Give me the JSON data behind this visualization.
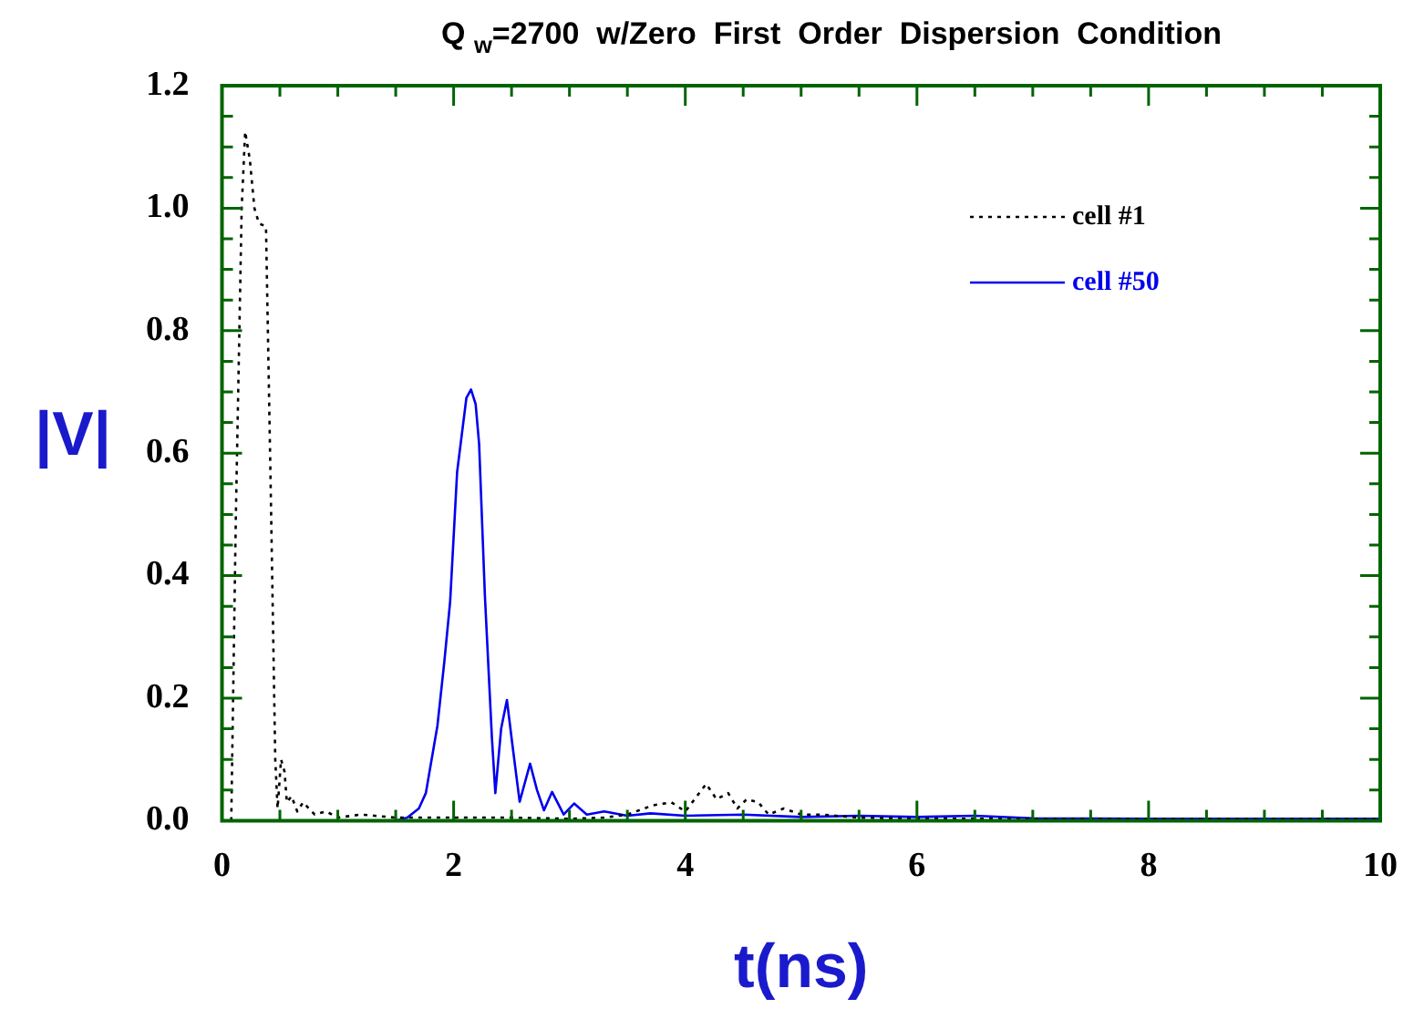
{
  "chart_data": {
    "type": "line",
    "title": "Q $_{w}$=2700  w/Zero  First  Order  Dispersion  Condition",
    "xlabel": "t(ns)",
    "ylabel": "|V|",
    "xlim": [
      0,
      10
    ],
    "ylim": [
      0,
      1.2
    ],
    "xticks": [
      0,
      {
        "value": 0.5,
        "label": null
      },
      {
        "value": 1,
        "label": null
      },
      {
        "value": 1.5,
        "label": null
      },
      2,
      {
        "value": 2.5,
        "label": null
      },
      {
        "value": 3,
        "label": null
      },
      {
        "value": 3.5,
        "label": null
      },
      4,
      {
        "value": 4.5,
        "label": null
      },
      {
        "value": 5,
        "label": null
      },
      {
        "value": 5.5,
        "label": null
      },
      6,
      {
        "value": 6.5,
        "label": null
      },
      {
        "value": 7,
        "label": null
      },
      {
        "value": 7.5,
        "label": null
      },
      8,
      {
        "value": 8.5,
        "label": null
      },
      {
        "value": 9,
        "label": null
      },
      {
        "value": 9.5,
        "label": null
      },
      10
    ],
    "yticks": [
      {
        "value": 0,
        "label": "0.0"
      },
      {
        "value": 0.05,
        "label": null
      },
      {
        "value": 0.1,
        "label": null
      },
      {
        "value": 0.15,
        "label": null
      },
      {
        "value": 0.2,
        "label": "0.2"
      },
      {
        "value": 0.25,
        "label": null
      },
      {
        "value": 0.3,
        "label": null
      },
      {
        "value": 0.35,
        "label": null
      },
      {
        "value": 0.4,
        "label": "0.4"
      },
      {
        "value": 0.45,
        "label": null
      },
      {
        "value": 0.5,
        "label": null
      },
      {
        "value": 0.55,
        "label": null
      },
      {
        "value": 0.6,
        "label": "0.6"
      },
      {
        "value": 0.65,
        "label": null
      },
      {
        "value": 0.7,
        "label": null
      },
      {
        "value": 0.75,
        "label": null
      },
      {
        "value": 0.8,
        "label": "0.8"
      },
      {
        "value": 0.85,
        "label": null
      },
      {
        "value": 0.9,
        "label": null
      },
      {
        "value": 0.95,
        "label": null
      },
      {
        "value": 1,
        "label": "1.0"
      },
      {
        "value": 1.05,
        "label": null
      },
      {
        "value": 1.1,
        "label": null
      },
      {
        "value": 1.15,
        "label": null
      },
      {
        "value": 1.2,
        "label": "1.2"
      }
    ],
    "legend": "top right",
    "marker": "none",
    "grid": false,
    "series": [
      {
        "name": "cell #1",
        "color": "#000000",
        "line_style": "dotted",
        "x": [
          0,
          0.08,
          0.12,
          0.17,
          0.2,
          0.24,
          0.28,
          0.32,
          0.38,
          0.42,
          0.46,
          0.48,
          0.51,
          0.54,
          0.56,
          0.6,
          0.65,
          0.7,
          0.8,
          0.9,
          1.0,
          1.2,
          1.5,
          2,
          2.5,
          3,
          3.3,
          3.5,
          3.72,
          3.88,
          4.0,
          4.1,
          4.18,
          4.27,
          4.37,
          4.45,
          4.53,
          4.63,
          4.72,
          4.85,
          5.0,
          5.17,
          5.5,
          6,
          7,
          8,
          9,
          10
        ],
        "values": [
          0,
          0,
          0.5,
          1.0,
          1.125,
          1.08,
          1.0,
          0.975,
          0.97,
          0.55,
          0.1,
          0.02,
          0.1,
          0.08,
          0.03,
          0.04,
          0.015,
          0.03,
          0.01,
          0.015,
          0.005,
          0.01,
          0.005,
          0.005,
          0.005,
          0.003,
          0.005,
          0.01,
          0.025,
          0.03,
          0.015,
          0.04,
          0.06,
          0.035,
          0.045,
          0.02,
          0.035,
          0.03,
          0.01,
          0.02,
          0.01,
          0.01,
          0.005,
          0.003,
          0.003,
          0.003,
          0.003,
          0.003
        ]
      },
      {
        "name": "cell #50",
        "color": "#0000ee",
        "line_style": "solid",
        "x": [
          0,
          1.5,
          1.6,
          1.7,
          1.76,
          1.86,
          1.92,
          1.97,
          2.03,
          2.11,
          2.15,
          2.19,
          2.22,
          2.27,
          2.33,
          2.36,
          2.41,
          2.46,
          2.51,
          2.57,
          2.66,
          2.72,
          2.78,
          2.85,
          2.95,
          3.04,
          3.15,
          3.3,
          3.5,
          3.7,
          4,
          4.5,
          5,
          5.5,
          6,
          6.5,
          7,
          8,
          9,
          10
        ],
        "values": [
          0,
          0,
          0.005,
          0.02,
          0.045,
          0.155,
          0.26,
          0.358,
          0.569,
          0.69,
          0.704,
          0.68,
          0.615,
          0.367,
          0.137,
          0.045,
          0.15,
          0.197,
          0.12,
          0.031,
          0.093,
          0.05,
          0.017,
          0.047,
          0.01,
          0.028,
          0.01,
          0.015,
          0.008,
          0.012,
          0.008,
          0.01,
          0.006,
          0.008,
          0.006,
          0.008,
          0.004,
          0.003,
          0.003,
          0.003
        ]
      }
    ]
  }
}
